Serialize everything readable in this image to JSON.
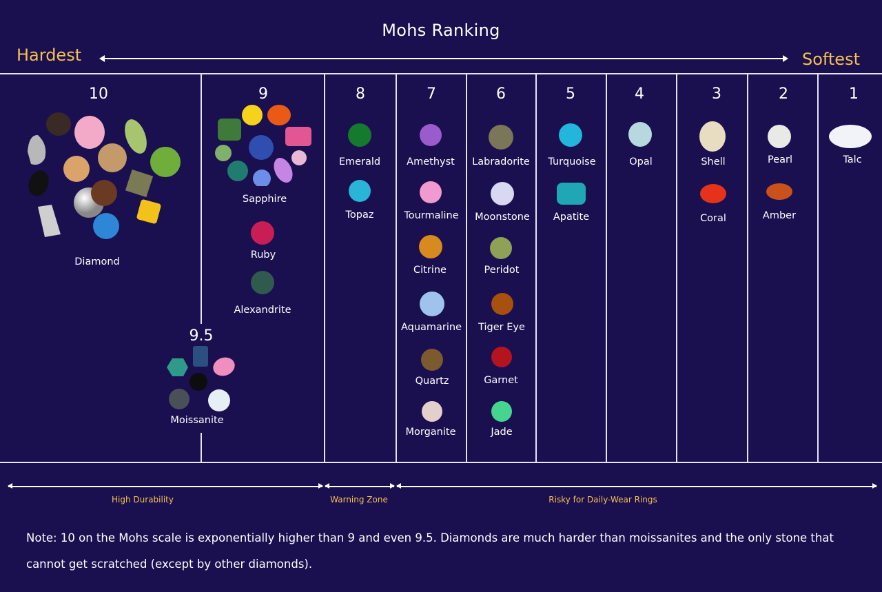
{
  "header": {
    "title": "Mohs Ranking",
    "hardest": "Hardest",
    "softest": "Softest"
  },
  "columns": [
    {
      "rank": "10",
      "gems": [
        "Diamond"
      ]
    },
    {
      "rank": "9.5",
      "gems": [
        "Moissanite"
      ]
    },
    {
      "rank": "9",
      "gems": [
        "Sapphire",
        "Ruby",
        "Alexandrite"
      ]
    },
    {
      "rank": "8",
      "gems": [
        "Emerald",
        "Topaz"
      ]
    },
    {
      "rank": "7",
      "gems": [
        "Amethyst",
        "Tourmaline",
        "Citrine",
        "Aquamarine",
        "Quartz",
        "Morganite"
      ]
    },
    {
      "rank": "6",
      "gems": [
        "Labradorite",
        "Moonstone",
        "Peridot",
        "Tiger Eye",
        "Garnet",
        "Jade"
      ]
    },
    {
      "rank": "5",
      "gems": [
        "Turquoise",
        "Apatite"
      ]
    },
    {
      "rank": "4",
      "gems": [
        "Opal"
      ]
    },
    {
      "rank": "3",
      "gems": [
        "Shell",
        "Coral"
      ]
    },
    {
      "rank": "2",
      "gems": [
        "Pearl",
        "Amber"
      ]
    },
    {
      "rank": "1",
      "gems": [
        "Talc"
      ]
    }
  ],
  "zones": [
    "High Durability",
    "Warning Zone",
    "Risky for Daily-Wear Rings"
  ],
  "note": "Note: 10 on the Mohs scale is exponentially higher than 9 and even 9.5. Diamonds are much harder than moissanites and the only stone that cannot get scratched (except by other diamonds).",
  "colors": {
    "background": "#1a0f4f",
    "accent": "#f6c052",
    "text": "#ffffff"
  }
}
